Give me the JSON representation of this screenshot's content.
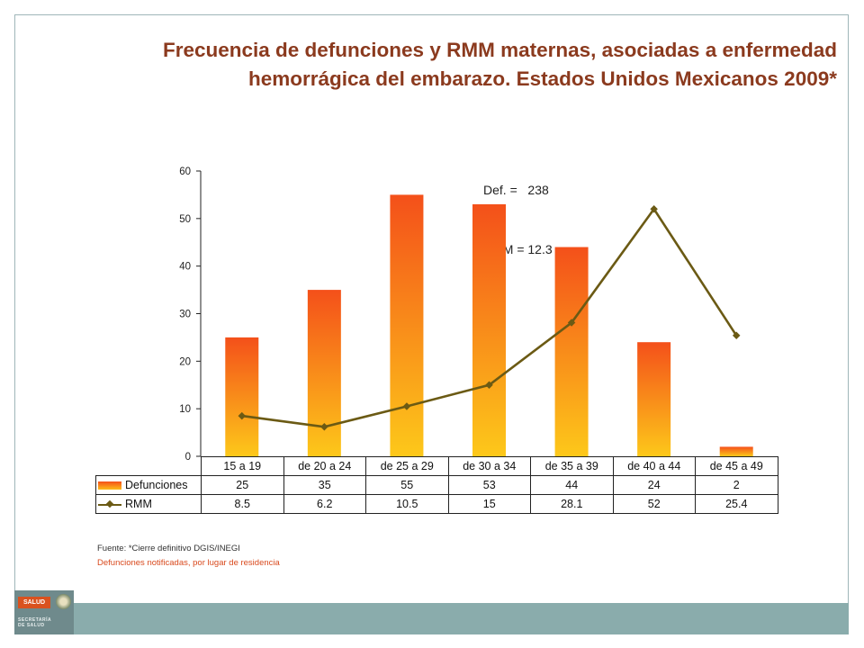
{
  "title_line1": "Frecuencia de defunciones y RMM maternas, asociadas a enfermedad",
  "title_line2": "hemorrágica del embarazo. Estados Unidos Mexicanos 2009*",
  "summary": {
    "def": "Def. =   238",
    "rmm": "RMM = 12.3"
  },
  "chart_data": {
    "type": "bar",
    "categories": [
      "15 a 19",
      "de 20 a 24",
      "de 25 a 29",
      "de 30 a 34",
      "de 35 a 39",
      "de 40 a 44",
      "de 45 a 49"
    ],
    "series": [
      {
        "name": "Defunciones",
        "type": "bar",
        "values": [
          25,
          35,
          55,
          53,
          44,
          24,
          2
        ],
        "display": [
          "25",
          "35",
          "55",
          "53",
          "44",
          "24",
          "2"
        ],
        "color_top": "#f4501a",
        "color_bottom": "#fdc81a"
      },
      {
        "name": "RMM",
        "type": "line",
        "values": [
          8.5,
          6.2,
          10.5,
          15,
          28.1,
          52,
          25.4
        ],
        "display": [
          "8.5",
          "6.2",
          "10.5",
          "15",
          "28.1",
          "52",
          "25.4"
        ],
        "color": "#6b5a14"
      }
    ],
    "ylim": [
      0,
      60
    ],
    "yticks": [
      0,
      10,
      20,
      30,
      40,
      50,
      60
    ],
    "xlabel": "",
    "ylabel": "",
    "data_table": true
  },
  "footer": {
    "source": "Fuente: *Cierre definitivo DGIS/INEGI",
    "note": "Defunciones notificadas, por lugar de residencia",
    "logo_label": "SALUD",
    "logo_text": "SECRETARÍA\nDE SALUD"
  },
  "colors": {
    "title": "#8b3a1e",
    "note": "#d94a1e",
    "footer_bar": "#8aacac"
  }
}
